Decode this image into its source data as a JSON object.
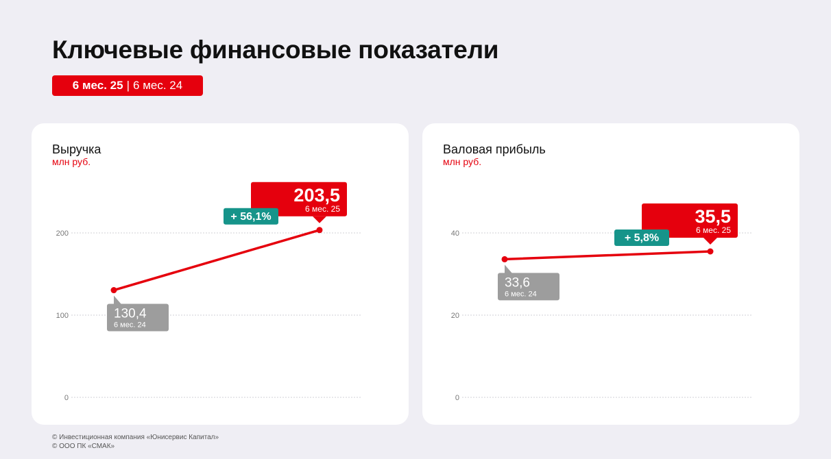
{
  "title": "Ключевые финансовые показатели",
  "period_badge": {
    "current": "6 мес. 25",
    "separator": "|",
    "previous": "6 мес. 24"
  },
  "colors": {
    "accent": "#e5000d",
    "growth": "#16948a",
    "previous": "#9d9d9d"
  },
  "chart_data": [
    {
      "type": "line",
      "title": "Выручка",
      "ylabel": "млн руб.",
      "categories": [
        "6 мес. 24",
        "6 мес. 25"
      ],
      "values": [
        130.4,
        203.5
      ],
      "value_labels": [
        "130,4",
        "203,5"
      ],
      "yticks": [
        0,
        100,
        200
      ],
      "ytick_labels": [
        "0",
        "100",
        "200"
      ],
      "ylim": [
        0,
        250
      ],
      "grid": true,
      "change_label": "+ 56,1%"
    },
    {
      "type": "line",
      "title": "Валовая прибыль",
      "ylabel": "млн руб.",
      "categories": [
        "6 мес. 24",
        "6 мес. 25"
      ],
      "values": [
        33.6,
        35.5
      ],
      "value_labels": [
        "33,6",
        "35,5"
      ],
      "yticks": [
        0,
        20,
        40
      ],
      "ytick_labels": [
        "0",
        "20",
        "40"
      ],
      "ylim": [
        0,
        50
      ],
      "grid": true,
      "change_label": "+ 5,8%"
    }
  ],
  "footer": {
    "line1": "© Инвестиционная компания «Юнисервис Капитал»",
    "line2": "© ООО ПК «СМАК»"
  }
}
